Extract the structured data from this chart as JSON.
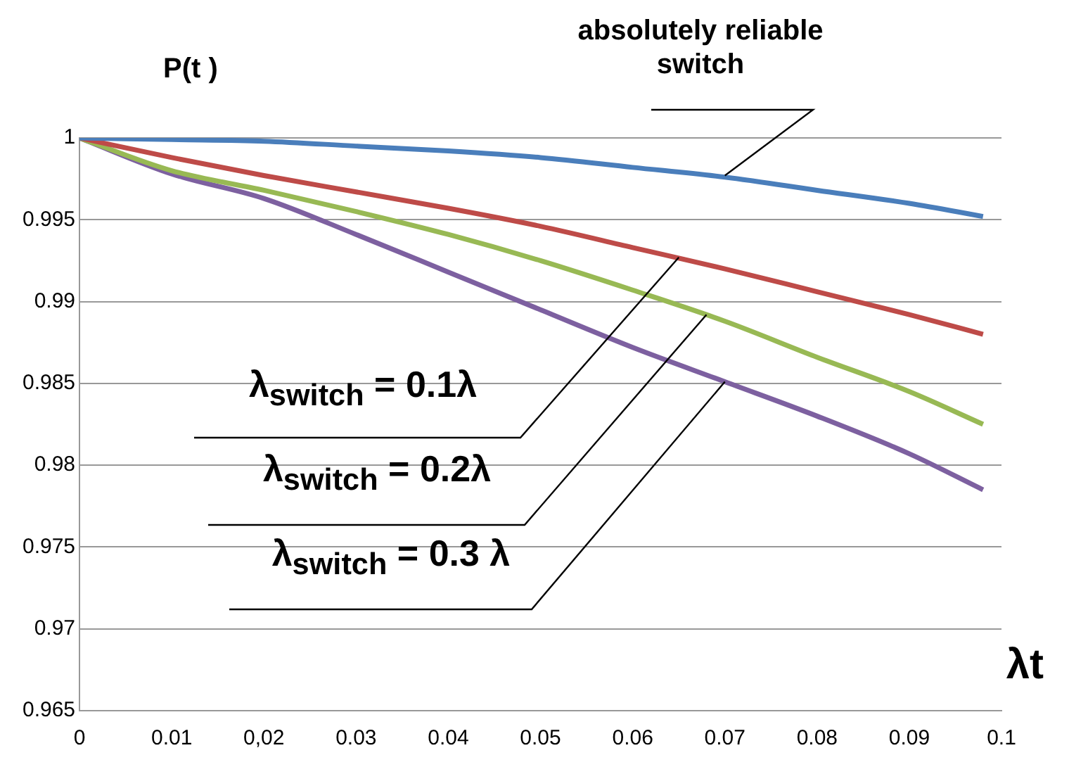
{
  "chart_data": {
    "type": "line",
    "xlabel": "λt",
    "ylabel": "P(t )",
    "x": [
      0,
      0.01,
      0.02,
      0.03,
      0.04,
      0.05,
      0.06,
      0.07,
      0.08,
      0.09,
      0.098
    ],
    "series": [
      {
        "color": "#4a7ebb",
        "values": [
          1,
          0.9999,
          0.9998,
          0.9995,
          0.9992,
          0.9988,
          0.9982,
          0.9976,
          0.9968,
          0.996,
          0.9952
        ]
      },
      {
        "color": "#be4b48",
        "values": [
          1,
          0.9988,
          0.9977,
          0.9967,
          0.9957,
          0.9946,
          0.9933,
          0.992,
          0.9906,
          0.9892,
          0.988
        ]
      },
      {
        "color": "#98b954",
        "values": [
          1,
          0.998,
          0.9968,
          0.9955,
          0.9941,
          0.9925,
          0.9907,
          0.9888,
          0.9866,
          0.9845,
          0.9825
        ]
      },
      {
        "color": "#7d60a0",
        "values": [
          1,
          0.9978,
          0.9963,
          0.9941,
          0.9918,
          0.9895,
          0.9872,
          0.9851,
          0.983,
          0.9807,
          0.9785
        ]
      }
    ],
    "xlim": [
      0,
      0.1
    ],
    "xticks": [
      0,
      0.01,
      {
        "value": 0.02,
        "label": "0,02"
      },
      0.03,
      0.04,
      0.05,
      0.06,
      0.07,
      0.08,
      0.09,
      0.1
    ],
    "ylim": [
      0.965,
      1
    ],
    "yticks": [
      0.965,
      0.97,
      0.975,
      0.98,
      0.985,
      0.99,
      0.995,
      1
    ],
    "grid": "y",
    "annotations": [
      {
        "text": "absolutely reliable switch",
        "x": 0.07,
        "y": 0.9977
      },
      {
        "text": "λ$_{switch}$ = 0.1λ",
        "x": 0.065,
        "y": 0.9927
      },
      {
        "text": "λ$_{switch}$ = 0.2λ",
        "x": 0.068,
        "y": 0.9892
      },
      {
        "text": "λ$_{switch}$ = 0.3 λ",
        "x": 0.07,
        "y": 0.9851
      }
    ]
  }
}
